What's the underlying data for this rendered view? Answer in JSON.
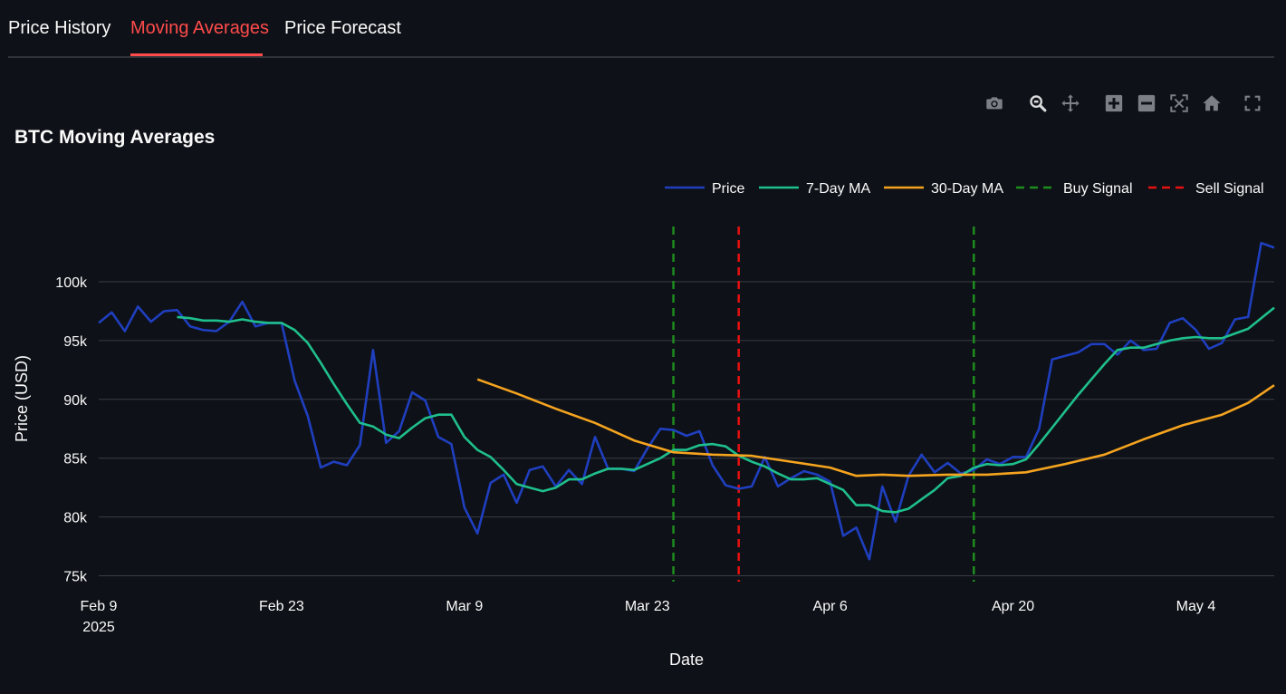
{
  "tabs": [
    {
      "label": "Price History",
      "active": false
    },
    {
      "label": "Moving Averages",
      "active": true
    },
    {
      "label": "Price Forecast",
      "active": false
    }
  ],
  "modebar": [
    "camera-icon",
    "zoom-icon",
    "pan-icon",
    "zoom-in-icon",
    "zoom-out-icon",
    "autoscale-icon",
    "reset-axes-icon",
    "fullscreen-icon"
  ],
  "colors": {
    "background": "#0e1117",
    "accent": "#ff4b4b",
    "price": "#1f3fbf",
    "ma7": "#1fbf8c",
    "ma30": "#f5a41f",
    "buy": "#1e8c1e",
    "sell": "#e81010",
    "grid": "#3a3d45"
  },
  "chart_data": {
    "type": "line",
    "title": "BTC Moving Averages",
    "xlabel": "Date",
    "ylabel": "Price (USD)",
    "x_range": [
      "2025-02-09",
      "2025-05-10"
    ],
    "ylim": [
      74500,
      104700
    ],
    "y_ticks": [
      75000,
      80000,
      85000,
      90000,
      95000,
      100000
    ],
    "y_tick_labels": [
      "75k",
      "80k",
      "85k",
      "90k",
      "95k",
      "100k"
    ],
    "x_ticks": [
      "2025-02-09",
      "2025-02-23",
      "2025-03-09",
      "2025-03-23",
      "2025-04-06",
      "2025-04-20",
      "2025-05-04"
    ],
    "x_tick_labels": [
      "Feb 9",
      "Feb 23",
      "Mar 9",
      "Mar 23",
      "Apr 6",
      "Apr 20",
      "May 4"
    ],
    "x_tick_sublabel": "2025",
    "grid": true,
    "legend_position": "top-right",
    "series": [
      {
        "name": "Price",
        "x": [
          "2025-02-09",
          "2025-02-10",
          "2025-02-11",
          "2025-02-12",
          "2025-02-13",
          "2025-02-14",
          "2025-02-15",
          "2025-02-16",
          "2025-02-17",
          "2025-02-18",
          "2025-02-19",
          "2025-02-20",
          "2025-02-21",
          "2025-02-22",
          "2025-02-23",
          "2025-02-24",
          "2025-02-25",
          "2025-02-26",
          "2025-02-27",
          "2025-02-28",
          "2025-03-01",
          "2025-03-02",
          "2025-03-03",
          "2025-03-04",
          "2025-03-05",
          "2025-03-06",
          "2025-03-07",
          "2025-03-08",
          "2025-03-09",
          "2025-03-10",
          "2025-03-11",
          "2025-03-12",
          "2025-03-13",
          "2025-03-14",
          "2025-03-15",
          "2025-03-16",
          "2025-03-17",
          "2025-03-18",
          "2025-03-19",
          "2025-03-20",
          "2025-03-21",
          "2025-03-22",
          "2025-03-23",
          "2025-03-24",
          "2025-03-25",
          "2025-03-26",
          "2025-03-27",
          "2025-03-28",
          "2025-03-29",
          "2025-03-30",
          "2025-03-31",
          "2025-04-01",
          "2025-04-02",
          "2025-04-03",
          "2025-04-04",
          "2025-04-05",
          "2025-04-06",
          "2025-04-07",
          "2025-04-08",
          "2025-04-09",
          "2025-04-10",
          "2025-04-11",
          "2025-04-12",
          "2025-04-13",
          "2025-04-14",
          "2025-04-15",
          "2025-04-16",
          "2025-04-17",
          "2025-04-18",
          "2025-04-19",
          "2025-04-20",
          "2025-04-21",
          "2025-04-22",
          "2025-04-23",
          "2025-04-24",
          "2025-04-25",
          "2025-04-26",
          "2025-04-27",
          "2025-04-28",
          "2025-04-29",
          "2025-04-30",
          "2025-05-01",
          "2025-05-02",
          "2025-05-03",
          "2025-05-04",
          "2025-05-05",
          "2025-05-06",
          "2025-05-07",
          "2025-05-08",
          "2025-05-09",
          "2025-05-10"
        ],
        "values": [
          96500,
          97400,
          95800,
          97900,
          96600,
          97500,
          97600,
          96200,
          95900,
          95800,
          96600,
          98300,
          96200,
          96500,
          96500,
          91600,
          88600,
          84200,
          84700,
          84400,
          86100,
          94200,
          86300,
          87300,
          90600,
          89900,
          86800,
          86200,
          80800,
          78600,
          82900,
          83600,
          81200,
          84000,
          84300,
          82600,
          84000,
          82800,
          86800,
          84100,
          84100,
          83900,
          85800,
          87500,
          87400,
          86900,
          87300,
          84400,
          82700,
          82400,
          82600,
          85100,
          82600,
          83300,
          83900,
          83600,
          83000,
          78400,
          79100,
          76400,
          82600,
          79600,
          83500,
          85300,
          83800,
          84600,
          83700,
          84000,
          84900,
          84500,
          85100,
          85100,
          87500,
          93400,
          93700,
          94000,
          94700,
          94700,
          93800,
          95000,
          94200,
          94300,
          96500,
          96900,
          95900,
          94300,
          94800,
          96800,
          97000,
          103300,
          102900
        ]
      },
      {
        "name": "7-Day MA",
        "x": [
          "2025-02-15",
          "2025-02-16",
          "2025-02-17",
          "2025-02-18",
          "2025-02-19",
          "2025-02-20",
          "2025-02-21",
          "2025-02-22",
          "2025-02-23",
          "2025-02-24",
          "2025-02-25",
          "2025-02-26",
          "2025-02-27",
          "2025-02-28",
          "2025-03-01",
          "2025-03-02",
          "2025-03-03",
          "2025-03-04",
          "2025-03-05",
          "2025-03-06",
          "2025-03-07",
          "2025-03-08",
          "2025-03-09",
          "2025-03-10",
          "2025-03-11",
          "2025-03-12",
          "2025-03-13",
          "2025-03-14",
          "2025-03-15",
          "2025-03-16",
          "2025-03-17",
          "2025-03-18",
          "2025-03-19",
          "2025-03-20",
          "2025-03-21",
          "2025-03-22",
          "2025-03-23",
          "2025-03-24",
          "2025-03-25",
          "2025-03-26",
          "2025-03-27",
          "2025-03-28",
          "2025-03-29",
          "2025-03-30",
          "2025-03-31",
          "2025-04-01",
          "2025-04-02",
          "2025-04-03",
          "2025-04-04",
          "2025-04-05",
          "2025-04-06",
          "2025-04-07",
          "2025-04-08",
          "2025-04-09",
          "2025-04-10",
          "2025-04-11",
          "2025-04-12",
          "2025-04-13",
          "2025-04-14",
          "2025-04-15",
          "2025-04-16",
          "2025-04-17",
          "2025-04-18",
          "2025-04-19",
          "2025-04-20",
          "2025-04-21",
          "2025-04-22",
          "2025-04-23",
          "2025-04-24",
          "2025-04-25",
          "2025-04-26",
          "2025-04-27",
          "2025-04-28",
          "2025-04-29",
          "2025-04-30",
          "2025-05-01",
          "2025-05-02",
          "2025-05-03",
          "2025-05-04",
          "2025-05-05",
          "2025-05-06",
          "2025-05-07",
          "2025-05-08",
          "2025-05-09",
          "2025-05-10"
        ],
        "values": [
          97000,
          96900,
          96700,
          96700,
          96600,
          96800,
          96600,
          96500,
          96500,
          95900,
          94800,
          93100,
          91300,
          89600,
          88000,
          87700,
          87000,
          86700,
          87600,
          88400,
          88700,
          88700,
          86800,
          85700,
          85100,
          84000,
          82800,
          82500,
          82200,
          82500,
          83200,
          83200,
          83700,
          84100,
          84100,
          84000,
          84500,
          85000,
          85700,
          85700,
          86100,
          86200,
          86000,
          85200,
          84700,
          84300,
          83700,
          83200,
          83200,
          83300,
          82800,
          82300,
          81000,
          81000,
          80500,
          80400,
          80700,
          81500,
          82300,
          83300,
          83500,
          84200,
          84500,
          84400,
          84500,
          84900,
          86200,
          87600,
          89000,
          90400,
          91700,
          93000,
          94200,
          94400,
          94400,
          94700,
          95000,
          95200,
          95300,
          95200,
          95200,
          95600,
          96000,
          96900,
          97800
        ]
      },
      {
        "name": "30-Day MA",
        "x": [
          "2025-03-10",
          "2025-03-13",
          "2025-03-16",
          "2025-03-19",
          "2025-03-22",
          "2025-03-25",
          "2025-03-28",
          "2025-03-31",
          "2025-04-03",
          "2025-04-06",
          "2025-04-08",
          "2025-04-10",
          "2025-04-12",
          "2025-04-15",
          "2025-04-18",
          "2025-04-21",
          "2025-04-24",
          "2025-04-27",
          "2025-04-30",
          "2025-05-03",
          "2025-05-06",
          "2025-05-08",
          "2025-05-10"
        ],
        "values": [
          91700,
          90500,
          89200,
          88000,
          86500,
          85500,
          85300,
          85200,
          84700,
          84200,
          83500,
          83600,
          83500,
          83600,
          83600,
          83800,
          84500,
          85300,
          86600,
          87800,
          88700,
          89700,
          91200
        ]
      }
    ],
    "signals": [
      {
        "name": "Buy Signal",
        "type": "buy",
        "date": "2025-03-25"
      },
      {
        "name": "Sell Signal",
        "type": "sell",
        "date": "2025-03-30"
      },
      {
        "name": "Buy Signal",
        "type": "buy",
        "date": "2025-04-17"
      }
    ],
    "legend": [
      {
        "name": "Price",
        "style": "solid",
        "color_key": "price"
      },
      {
        "name": "7-Day MA",
        "style": "solid",
        "color_key": "ma7"
      },
      {
        "name": "30-Day MA",
        "style": "solid",
        "color_key": "ma30"
      },
      {
        "name": "Buy Signal",
        "style": "dash",
        "color_key": "buy"
      },
      {
        "name": "Sell Signal",
        "style": "dash",
        "color_key": "sell"
      }
    ]
  }
}
